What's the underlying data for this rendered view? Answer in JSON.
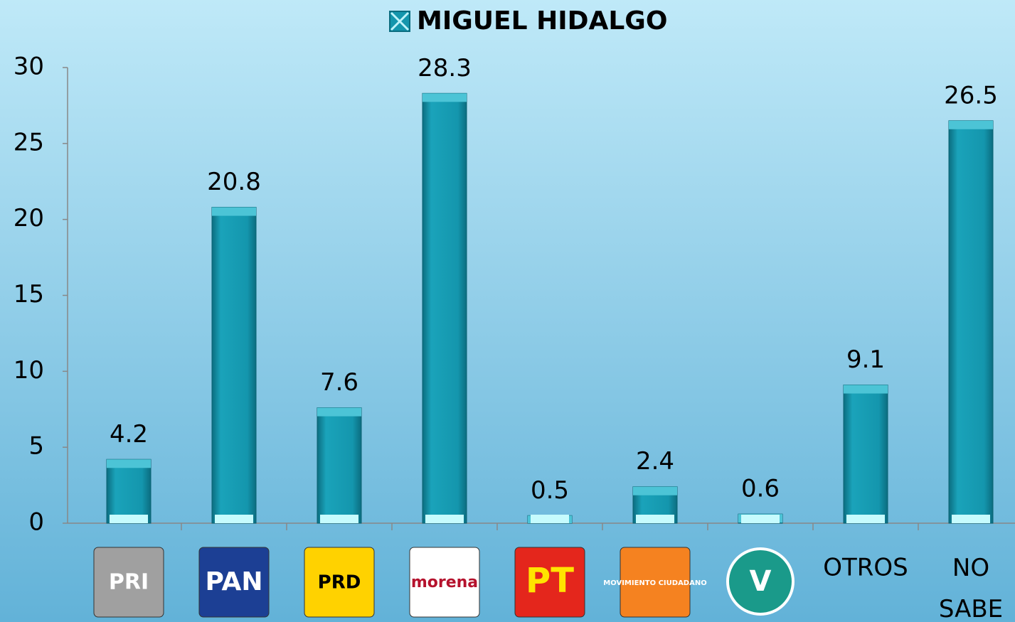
{
  "chart_data": {
    "type": "bar",
    "title": "MIGUEL HIDALGO",
    "categories": [
      "PRI",
      "PAN",
      "PRD",
      "morena",
      "PT",
      "MOVIMIENTO CIUDADANO",
      "V",
      "OTROS",
      "NO SABE"
    ],
    "series": [
      {
        "name": "MIGUEL HIDALGO",
        "color": "#1496ad",
        "values": [
          4.2,
          20.8,
          7.6,
          28.3,
          0.5,
          2.4,
          0.6,
          9.1,
          26.5
        ]
      }
    ],
    "ylim": [
      0,
      30
    ],
    "yticks": [
      0,
      5,
      10,
      15,
      20,
      25,
      30
    ],
    "grid": false,
    "legend": "top"
  }
}
